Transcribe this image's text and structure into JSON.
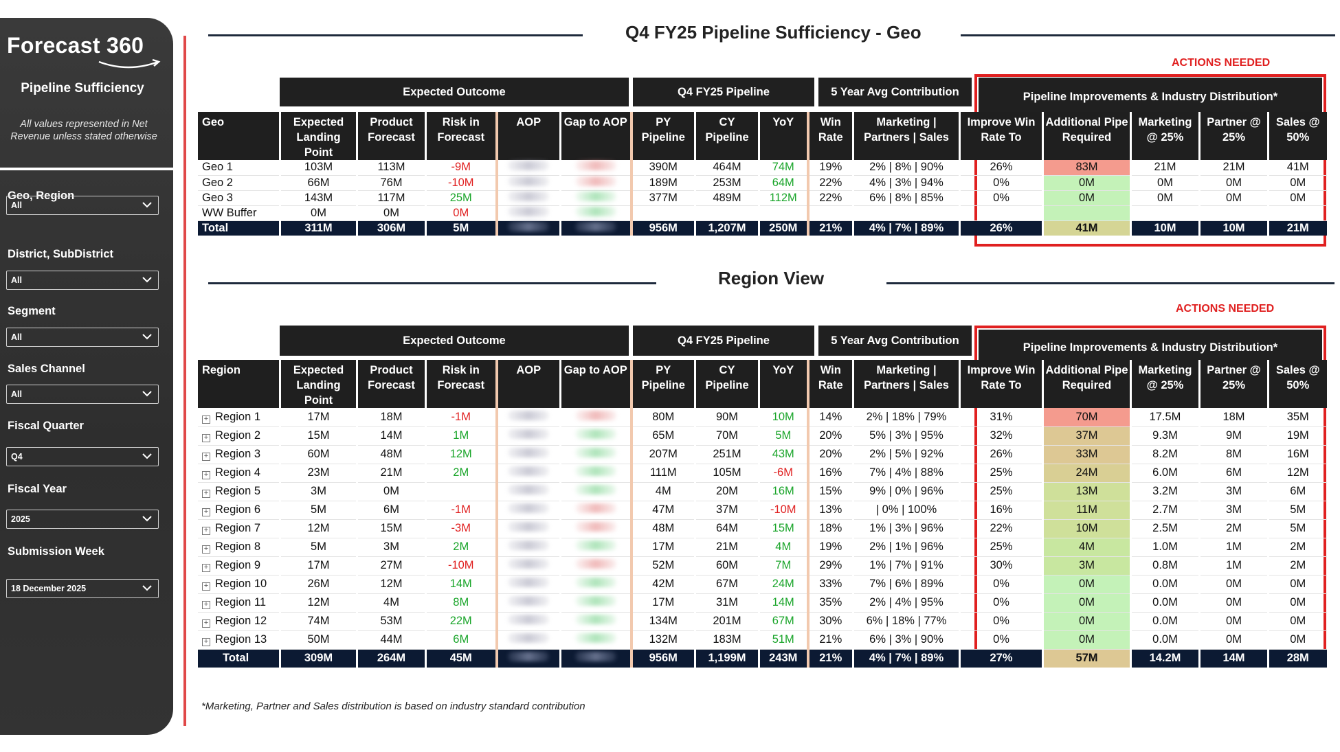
{
  "sidebar": {
    "logo": "Forecast 360",
    "title": "Pipeline Sufficiency",
    "note": "All values represented in Net Revenue unless stated otherwise",
    "filters": [
      {
        "label": "Geo, Region",
        "value": "All"
      },
      {
        "label": "District, SubDistrict",
        "value": "All"
      },
      {
        "label": "Segment",
        "value": "All"
      },
      {
        "label": "Sales Channel",
        "value": "All"
      },
      {
        "label": "Fiscal Quarter",
        "value": "Q4"
      },
      {
        "label": "Fiscal Year",
        "value": "2025"
      },
      {
        "label": "Submission Week",
        "value": "18 December 2025"
      }
    ]
  },
  "geo_section": {
    "title": "Q4 FY25 Pipeline Sufficiency - Geo",
    "actions_label": "ACTIONS NEEDED",
    "groups": [
      "Expected Outcome",
      "Q4 FY25 Pipeline",
      "5 Year Avg Contribution",
      "Pipeline Improvements & Industry Distribution*"
    ],
    "columns": [
      "Geo",
      "Expected Landing Point",
      "Product Forecast",
      "Risk in Forecast",
      "AOP",
      "Gap to AOP",
      "PY Pipeline",
      "CY Pipeline",
      "YoY",
      "Win Rate",
      "Marketing | Partners | Sales",
      "Improve Win Rate To",
      "Additional Pipe Required",
      "Marketing @ 25%",
      "Partner @ 25%",
      "Sales @ 50%"
    ],
    "rows": [
      {
        "name": "Geo 1",
        "elp": "103M",
        "pf": "113M",
        "risk": "-9M",
        "py": "390M",
        "cy": "464M",
        "yoy": "74M",
        "win": "19%",
        "mps": "2% | 8% | 90%",
        "improve": "26%",
        "add": "83M",
        "mkt": "21M",
        "partner": "21M",
        "sales": "41M"
      },
      {
        "name": "Geo 2",
        "elp": "66M",
        "pf": "76M",
        "risk": "-10M",
        "py": "189M",
        "cy": "253M",
        "yoy": "64M",
        "win": "22%",
        "mps": "4% | 3% | 94%",
        "improve": "0%",
        "add": "0M",
        "mkt": "0M",
        "partner": "0M",
        "sales": "0M"
      },
      {
        "name": "Geo 3",
        "elp": "143M",
        "pf": "117M",
        "risk": "25M",
        "py": "377M",
        "cy": "489M",
        "yoy": "112M",
        "win": "22%",
        "mps": "6% | 8% | 85%",
        "improve": "0%",
        "add": "0M",
        "mkt": "0M",
        "partner": "0M",
        "sales": "0M"
      },
      {
        "name": "WW Buffer",
        "elp": "0M",
        "pf": "0M",
        "risk": "0M",
        "py": "",
        "cy": "",
        "yoy": "",
        "win": "",
        "mps": "",
        "improve": "",
        "add": "",
        "mkt": "",
        "partner": "",
        "sales": ""
      }
    ],
    "total": {
      "name": "Total",
      "elp": "311M",
      "pf": "306M",
      "risk": "5M",
      "py": "956M",
      "cy": "1,207M",
      "yoy": "250M",
      "win": "21%",
      "mps": "4% | 7% | 89%",
      "improve": "26%",
      "add": "41M",
      "mkt": "10M",
      "partner": "10M",
      "sales": "21M"
    }
  },
  "region_section": {
    "title": "Region View",
    "actions_label": "ACTIONS NEEDED",
    "groups": [
      "Expected Outcome",
      "Q4 FY25 Pipeline",
      "5 Year Avg Contribution",
      "Pipeline Improvements & Industry Distribution*"
    ],
    "columns": [
      "Region",
      "Expected Landing Point",
      "Product Forecast",
      "Risk in Forecast",
      "AOP",
      "Gap to AOP",
      "PY Pipeline",
      "CY Pipeline",
      "YoY",
      "Win Rate",
      "Marketing | Partners | Sales",
      "Improve Win Rate To",
      "Additional Pipe Required",
      "Marketing @ 25%",
      "Partner @ 25%",
      "Sales @ 50%"
    ],
    "rows": [
      {
        "name": "Region 1",
        "elp": "17M",
        "pf": "18M",
        "risk": "-1M",
        "py": "80M",
        "cy": "90M",
        "yoy": "10M",
        "win": "14%",
        "mps": "2% | 18% | 79%",
        "improve": "31%",
        "add": "70M",
        "mkt": "17.5M",
        "partner": "18M",
        "sales": "35M"
      },
      {
        "name": "Region 2",
        "elp": "15M",
        "pf": "14M",
        "risk": "1M",
        "py": "65M",
        "cy": "70M",
        "yoy": "5M",
        "win": "20%",
        "mps": "5% | 3% | 95%",
        "improve": "32%",
        "add": "37M",
        "mkt": "9.3M",
        "partner": "9M",
        "sales": "19M"
      },
      {
        "name": "Region 3",
        "elp": "60M",
        "pf": "48M",
        "risk": "12M",
        "py": "207M",
        "cy": "251M",
        "yoy": "43M",
        "win": "20%",
        "mps": "2% | 5% | 92%",
        "improve": "26%",
        "add": "33M",
        "mkt": "8.2M",
        "partner": "8M",
        "sales": "16M"
      },
      {
        "name": "Region 4",
        "elp": "23M",
        "pf": "21M",
        "risk": "2M",
        "py": "111M",
        "cy": "105M",
        "yoy": "-6M",
        "win": "16%",
        "mps": "7% | 4% | 88%",
        "improve": "25%",
        "add": "24M",
        "mkt": "6.0M",
        "partner": "6M",
        "sales": "12M"
      },
      {
        "name": "Region 5",
        "elp": "3M",
        "pf": "0M",
        "risk": "",
        "py": "4M",
        "cy": "20M",
        "yoy": "16M",
        "win": "15%",
        "mps": "9% | 0% | 96%",
        "improve": "25%",
        "add": "13M",
        "mkt": "3.2M",
        "partner": "3M",
        "sales": "6M"
      },
      {
        "name": "Region 6",
        "elp": "5M",
        "pf": "6M",
        "risk": "-1M",
        "py": "47M",
        "cy": "37M",
        "yoy": "-10M",
        "win": "13%",
        "mps": "| 0% | 100%",
        "improve": "16%",
        "add": "11M",
        "mkt": "2.7M",
        "partner": "3M",
        "sales": "5M"
      },
      {
        "name": "Region 7",
        "elp": "12M",
        "pf": "15M",
        "risk": "-3M",
        "py": "48M",
        "cy": "64M",
        "yoy": "15M",
        "win": "18%",
        "mps": "1% | 3% | 96%",
        "improve": "22%",
        "add": "10M",
        "mkt": "2.5M",
        "partner": "2M",
        "sales": "5M"
      },
      {
        "name": "Region 8",
        "elp": "5M",
        "pf": "3M",
        "risk": "2M",
        "py": "17M",
        "cy": "21M",
        "yoy": "4M",
        "win": "19%",
        "mps": "2% | 1% | 96%",
        "improve": "25%",
        "add": "4M",
        "mkt": "1.0M",
        "partner": "1M",
        "sales": "2M"
      },
      {
        "name": "Region 9",
        "elp": "17M",
        "pf": "27M",
        "risk": "-10M",
        "py": "52M",
        "cy": "60M",
        "yoy": "7M",
        "win": "29%",
        "mps": "1% | 7% | 91%",
        "improve": "30%",
        "add": "3M",
        "mkt": "0.8M",
        "partner": "1M",
        "sales": "2M"
      },
      {
        "name": "Region 10",
        "elp": "26M",
        "pf": "12M",
        "risk": "14M",
        "py": "42M",
        "cy": "67M",
        "yoy": "24M",
        "win": "33%",
        "mps": "7% | 6% | 89%",
        "improve": "0%",
        "add": "0M",
        "mkt": "0.0M",
        "partner": "0M",
        "sales": "0M"
      },
      {
        "name": "Region 11",
        "elp": "12M",
        "pf": "4M",
        "risk": "8M",
        "py": "17M",
        "cy": "31M",
        "yoy": "14M",
        "win": "35%",
        "mps": "2% | 4% | 95%",
        "improve": "0%",
        "add": "0M",
        "mkt": "0.0M",
        "partner": "0M",
        "sales": "0M"
      },
      {
        "name": "Region 12",
        "elp": "74M",
        "pf": "53M",
        "risk": "22M",
        "py": "134M",
        "cy": "201M",
        "yoy": "67M",
        "win": "30%",
        "mps": "6% | 18% | 77%",
        "improve": "0%",
        "add": "0M",
        "mkt": "0.0M",
        "partner": "0M",
        "sales": "0M"
      },
      {
        "name": "Region 13",
        "elp": "50M",
        "pf": "44M",
        "risk": "6M",
        "py": "132M",
        "cy": "183M",
        "yoy": "51M",
        "win": "21%",
        "mps": "6% | 3% | 90%",
        "improve": "0%",
        "add": "0M",
        "mkt": "0.0M",
        "partner": "0M",
        "sales": "0M"
      }
    ],
    "total": {
      "name": "Total",
      "elp": "309M",
      "pf": "264M",
      "risk": "45M",
      "py": "956M",
      "cy": "1,199M",
      "yoy": "243M",
      "win": "21%",
      "mps": "4% | 7% | 89%",
      "improve": "27%",
      "add": "57M",
      "mkt": "14.2M",
      "partner": "14M",
      "sales": "28M"
    }
  },
  "footnote": "*Marketing, Partner and Sales distribution is based on industry standard contribution",
  "colors": {
    "add_pipe_heat": [
      "#f49b8e",
      "#f1a58c",
      "#eea98a",
      "#e9b88c",
      "#ddc894",
      "#d9cf94",
      "#d5d595",
      "#cfe09a",
      "#c8e7a0",
      "#c4f2b8"
    ],
    "accent_red": "#e02020",
    "positive_green": "#1aa52a",
    "total_navy": "#0c1a33"
  }
}
